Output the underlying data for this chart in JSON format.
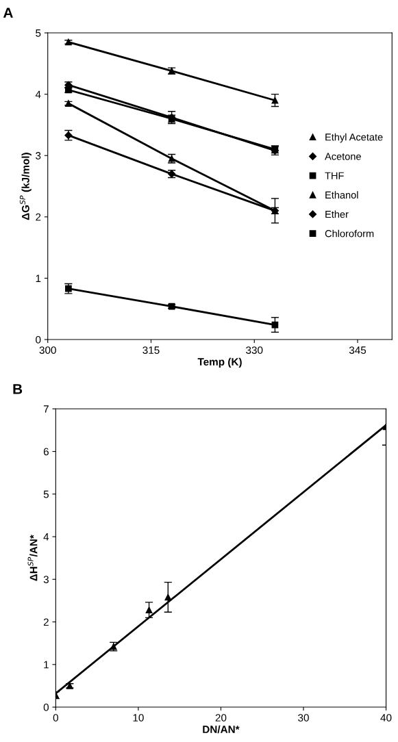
{
  "chart_data": [
    {
      "type": "line",
      "title": "A",
      "xlabel": "Temp (K)",
      "ylabel": "ΔG$^{SP}$ (kJ/mol)",
      "x": [
        303,
        318,
        333
      ],
      "xlim": [
        300,
        350
      ],
      "xticks": [
        300,
        315,
        330,
        345
      ],
      "ylim": [
        0,
        5
      ],
      "yticks": [
        0,
        1,
        2,
        3,
        4,
        5
      ],
      "grid": false,
      "legend": "right",
      "line_style": "solid",
      "series": [
        {
          "name": "Ethyl Acetate",
          "color": "#000000",
          "marker": "triangle",
          "values": [
            4.85,
            4.38,
            3.9
          ],
          "errors": [
            0.03,
            0.05,
            0.1
          ]
        },
        {
          "name": "Acetone",
          "color": "#000000",
          "marker": "diamond",
          "values": [
            4.15,
            3.62,
            3.08
          ],
          "errors": [
            0.05,
            0.1,
            0.07
          ]
        },
        {
          "name": "THF",
          "color": "#000000",
          "marker": "square",
          "values": [
            4.07,
            3.6,
            3.1
          ],
          "errors": [
            0.04,
            0.06,
            0.06
          ]
        },
        {
          "name": "Ethanol",
          "color": "#000000",
          "marker": "triangle",
          "values": [
            3.85,
            2.95,
            2.1
          ],
          "errors": [
            0.03,
            0.07,
            0.05
          ]
        },
        {
          "name": "Ether",
          "color": "#000000",
          "marker": "diamond",
          "values": [
            3.33,
            2.7,
            2.1
          ],
          "errors": [
            0.08,
            0.06,
            0.2
          ]
        },
        {
          "name": "Chloroform",
          "color": "#000000",
          "marker": "square",
          "values": [
            0.83,
            0.54,
            0.24
          ],
          "errors": [
            0.08,
            0.03,
            0.12
          ]
        }
      ]
    },
    {
      "type": "scatter",
      "title": "B",
      "xlabel": "DN/AN*",
      "ylabel": "ΔH$^{SP}$/AN*",
      "xlim": [
        0,
        40
      ],
      "xticks": [
        0,
        10,
        20,
        30,
        40
      ],
      "ylim": [
        0,
        7
      ],
      "yticks": [
        0,
        1,
        2,
        3,
        4,
        5,
        6,
        7
      ],
      "grid": false,
      "legend": false,
      "series": [
        {
          "type": "scatter",
          "color": "#000000",
          "marker": "triangle",
          "x": [
            0,
            1.7,
            7,
            11.3,
            13.6,
            40
          ],
          "values": [
            0.28,
            0.5,
            1.42,
            2.28,
            2.58,
            6.58
          ],
          "errors": [
            0.08,
            0.05,
            0.1,
            0.18,
            0.35,
            0.43
          ]
        },
        {
          "type": "line",
          "color": "#000000",
          "line_style": "solid",
          "x": [
            0,
            40
          ],
          "values": [
            0.32,
            6.62
          ]
        }
      ]
    }
  ]
}
